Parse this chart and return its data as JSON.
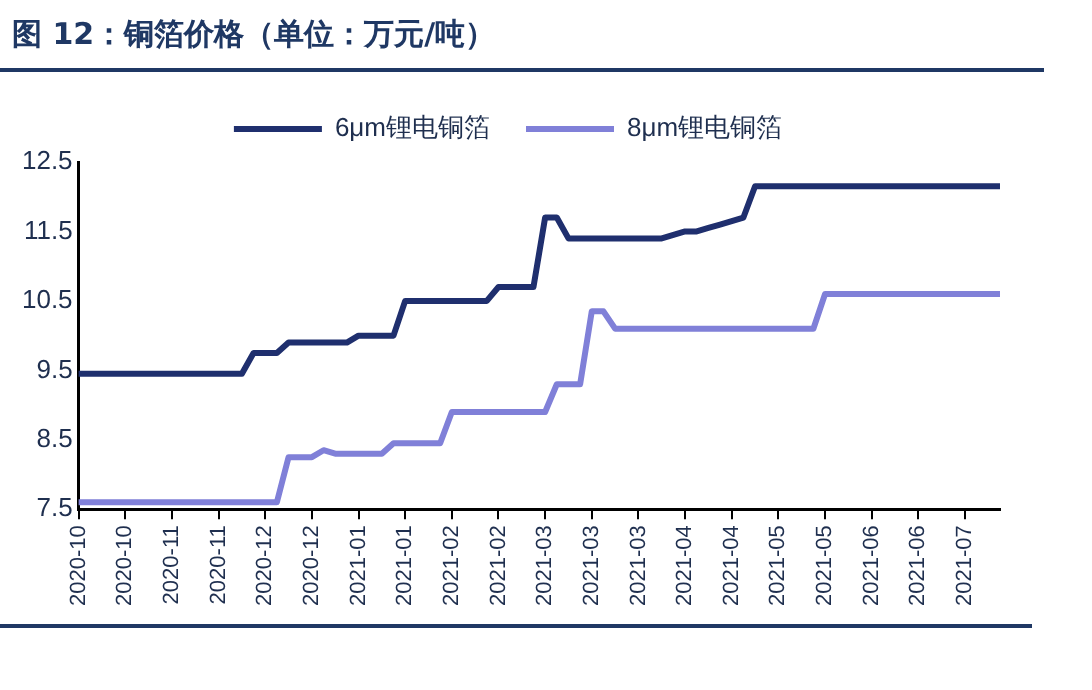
{
  "chart_data": {
    "type": "line",
    "title": "图 12：铜箔价格（单位：万元/吨）",
    "categories": [
      "2020-10",
      null,
      null,
      null,
      "2020-10",
      null,
      null,
      null,
      "2020-11",
      null,
      null,
      null,
      "2020-11",
      null,
      null,
      null,
      "2020-12",
      null,
      null,
      null,
      "2020-12",
      null,
      null,
      null,
      "2021-01",
      null,
      null,
      null,
      "2021-01",
      null,
      null,
      null,
      "2021-02",
      null,
      null,
      null,
      "2021-02",
      null,
      null,
      null,
      "2021-03",
      null,
      null,
      null,
      "2021-03",
      null,
      null,
      null,
      "2021-03",
      null,
      null,
      null,
      "2021-04",
      null,
      null,
      null,
      "2021-04",
      null,
      null,
      null,
      "2021-05",
      null,
      null,
      null,
      "2021-05",
      null,
      null,
      null,
      "2021-06",
      null,
      null,
      null,
      "2021-06",
      null,
      null,
      null,
      "2021-07",
      null,
      null,
      null
    ],
    "series": [
      {
        "name": "6μm锂电铜箔",
        "color": "#1f2f6e",
        "values": [
          9.45,
          9.45,
          9.45,
          9.45,
          9.45,
          9.45,
          9.45,
          9.45,
          9.45,
          9.45,
          9.45,
          9.45,
          9.45,
          9.45,
          9.45,
          9.75,
          9.75,
          9.75,
          9.9,
          9.9,
          9.9,
          9.9,
          9.9,
          9.9,
          10.0,
          10.0,
          10.0,
          10.0,
          10.5,
          10.5,
          10.5,
          10.5,
          10.5,
          10.5,
          10.5,
          10.5,
          10.7,
          10.7,
          10.7,
          10.7,
          11.7,
          11.7,
          11.4,
          11.4,
          11.4,
          11.4,
          11.4,
          11.4,
          11.4,
          11.4,
          11.4,
          11.45,
          11.5,
          11.5,
          11.55,
          11.6,
          11.65,
          11.7,
          12.15,
          12.15,
          12.15,
          12.15,
          12.15,
          12.15,
          12.15,
          12.15,
          12.15,
          12.15,
          12.15,
          12.15,
          12.15,
          12.15,
          12.15,
          12.15,
          12.15,
          12.15,
          12.15,
          12.15,
          12.15,
          12.15
        ]
      },
      {
        "name": "8μm锂电铜箔",
        "color": "#8080d8",
        "values": [
          7.6,
          7.6,
          7.6,
          7.6,
          7.6,
          7.6,
          7.6,
          7.6,
          7.6,
          7.6,
          7.6,
          7.6,
          7.6,
          7.6,
          7.6,
          7.6,
          7.6,
          7.6,
          8.25,
          8.25,
          8.25,
          8.35,
          8.3,
          8.3,
          8.3,
          8.3,
          8.3,
          8.45,
          8.45,
          8.45,
          8.45,
          8.45,
          8.9,
          8.9,
          8.9,
          8.9,
          8.9,
          8.9,
          8.9,
          8.9,
          8.9,
          9.3,
          9.3,
          9.3,
          10.35,
          10.35,
          10.1,
          10.1,
          10.1,
          10.1,
          10.1,
          10.1,
          10.1,
          10.1,
          10.1,
          10.1,
          10.1,
          10.1,
          10.1,
          10.1,
          10.1,
          10.1,
          10.1,
          10.1,
          10.6,
          10.6,
          10.6,
          10.6,
          10.6,
          10.6,
          10.6,
          10.6,
          10.6,
          10.6,
          10.6,
          10.6,
          10.6,
          10.6,
          10.6,
          10.6
        ]
      }
    ],
    "ylim": [
      7.5,
      12.5
    ],
    "yticks": [
      7.5,
      8.5,
      9.5,
      10.5,
      11.5,
      12.5
    ],
    "grid": false,
    "legend": "top",
    "marker": "none",
    "line_style": "solid"
  }
}
